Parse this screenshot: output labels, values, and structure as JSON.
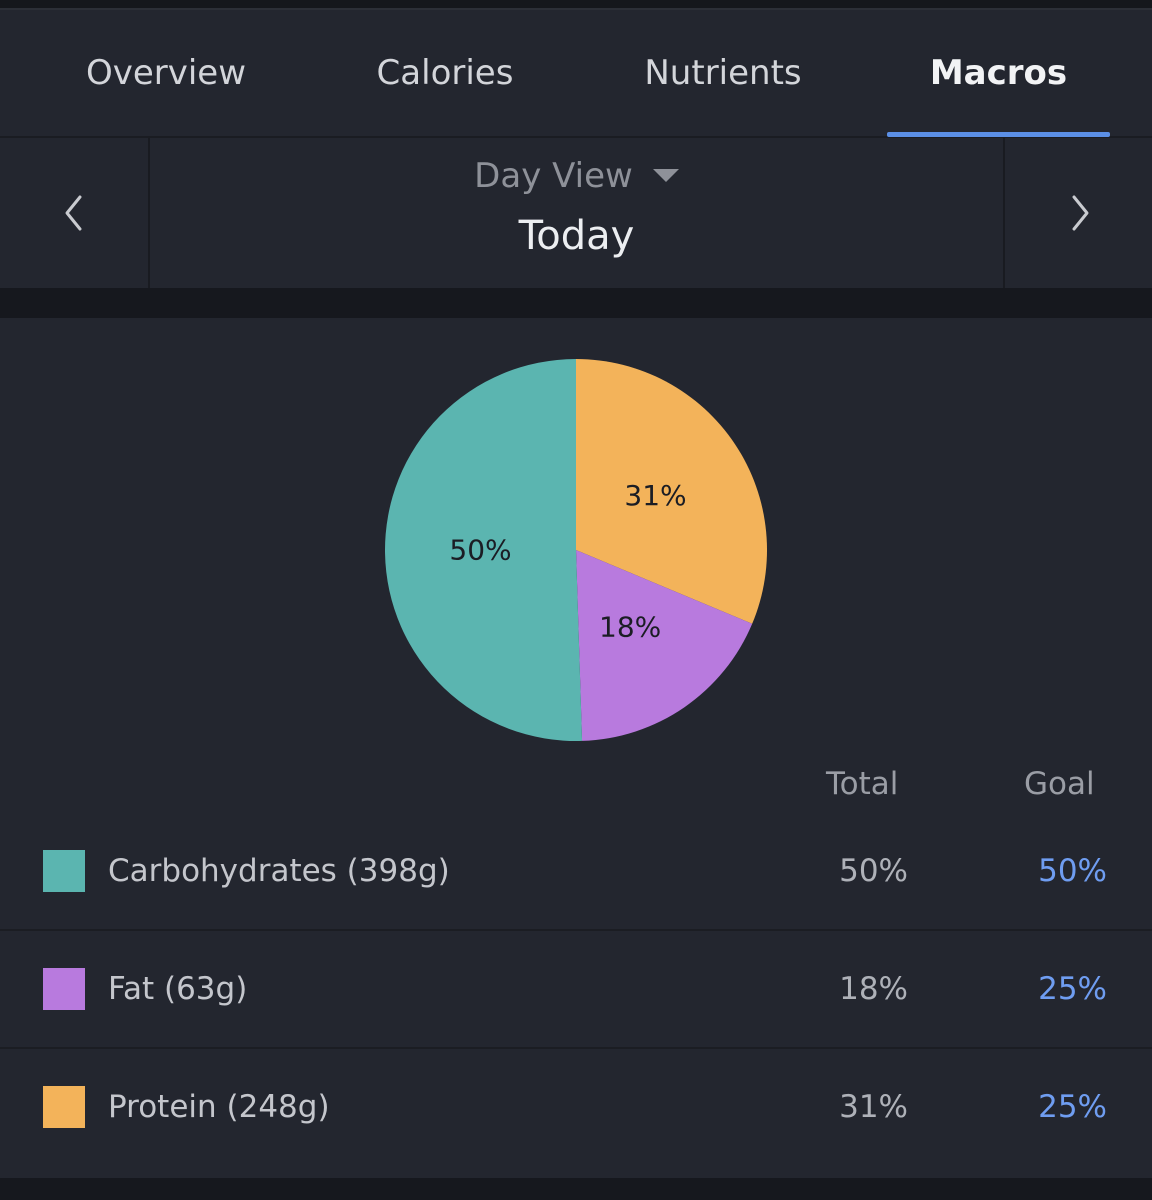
{
  "tabs": [
    {
      "label": "Overview",
      "active": false
    },
    {
      "label": "Calories",
      "active": false
    },
    {
      "label": "Nutrients",
      "active": false
    },
    {
      "label": "Macros",
      "active": true
    }
  ],
  "date_nav": {
    "view_selector": "Day View",
    "current": "Today",
    "prev_icon": "chevron-left-icon",
    "next_icon": "chevron-right-icon",
    "caret_icon": "caret-down-icon"
  },
  "columns": {
    "total": "Total",
    "goal": "Goal"
  },
  "macros": [
    {
      "name": "Carbohydrates (398g)",
      "total": "50%",
      "goal": "50%",
      "color": "#5bb5b0"
    },
    {
      "name": "Fat (63g)",
      "total": "18%",
      "goal": "25%",
      "color": "#b87ade"
    },
    {
      "name": "Protein (248g)",
      "total": "31%",
      "goal": "25%",
      "color": "#f3b35a"
    }
  ],
  "chart_data": {
    "type": "pie",
    "slices": [
      {
        "label": "31%",
        "value": 31,
        "color": "#f3b35a"
      },
      {
        "label": "18%",
        "value": 18,
        "color": "#b87ade"
      },
      {
        "label": "50%",
        "value": 50,
        "color": "#5bb5b0"
      }
    ],
    "start": "12 o'clock",
    "direction": "clockwise"
  }
}
